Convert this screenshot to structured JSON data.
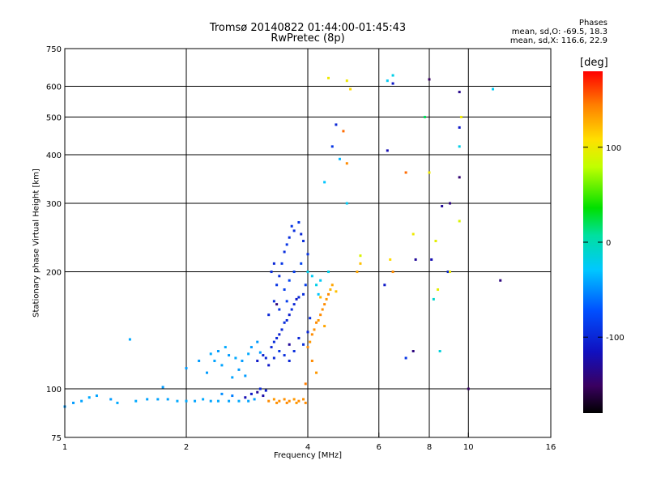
{
  "chart_data": {
    "type": "scatter",
    "title": "Tromsø 20140822 01:44:00-01:45:43",
    "subtitle": "RwPretec (8p)",
    "xlabel": "Frequency [MHz]",
    "ylabel": "Stationary phase Virtual Height [km]",
    "x_scale": "log",
    "y_scale": "log",
    "xlim": [
      1,
      16
    ],
    "ylim": [
      75,
      750
    ],
    "x_ticks": [
      1,
      2,
      4,
      6,
      8,
      10,
      16
    ],
    "y_ticks": [
      75,
      100,
      200,
      300,
      400,
      500,
      600,
      750
    ],
    "x_grid": [
      2,
      4,
      6,
      8,
      10
    ],
    "y_grid": [
      100,
      200,
      300,
      400,
      500,
      600
    ],
    "grid": true,
    "phase_stats": {
      "heading": "Phases",
      "o_line": "mean, sd,O: -69.5, 18.3",
      "x_line": "mean, sd,X: 116.6, 22.9"
    },
    "colorbar": {
      "label": "[deg]",
      "min": -180,
      "max": 180,
      "ticks": [
        100,
        0,
        -100
      ]
    },
    "series": [
      {
        "points": [
          [
            1.0,
            90,
            -45
          ],
          [
            1.05,
            92,
            -45
          ],
          [
            1.1,
            93,
            -42
          ],
          [
            1.15,
            95,
            -40
          ],
          [
            1.2,
            96,
            -42
          ],
          [
            1.3,
            94,
            -45
          ],
          [
            1.35,
            92,
            -40
          ],
          [
            1.45,
            134,
            -40
          ],
          [
            1.5,
            93,
            -40
          ],
          [
            1.6,
            94,
            -42
          ],
          [
            1.7,
            94,
            -42
          ],
          [
            1.8,
            94,
            -42
          ],
          [
            1.9,
            93,
            -40
          ],
          [
            2.0,
            93,
            -40
          ],
          [
            2.1,
            93,
            -42
          ],
          [
            2.2,
            94,
            -40
          ],
          [
            2.3,
            93,
            -42
          ],
          [
            2.4,
            93,
            -40
          ],
          [
            2.55,
            93,
            -42
          ],
          [
            2.7,
            93,
            -40
          ],
          [
            2.85,
            93,
            -42
          ],
          [
            2.95,
            94,
            -45
          ],
          [
            1.75,
            101,
            -45
          ],
          [
            2.45,
            97,
            -50
          ],
          [
            2.6,
            96,
            -55
          ],
          [
            2.0,
            113,
            -45
          ],
          [
            2.15,
            118,
            -45
          ],
          [
            2.25,
            110,
            -45
          ],
          [
            2.3,
            123,
            -40
          ],
          [
            2.4,
            125,
            -45
          ],
          [
            2.45,
            115,
            -42
          ],
          [
            2.55,
            122,
            -45
          ],
          [
            2.6,
            107,
            -42
          ],
          [
            2.7,
            112,
            -45
          ],
          [
            2.75,
            118,
            -45
          ],
          [
            2.85,
            123,
            -40
          ],
          [
            2.9,
            128,
            -45
          ],
          [
            3.0,
            132,
            -45
          ],
          [
            3.05,
            124,
            -45
          ],
          [
            2.5,
            128,
            -40
          ],
          [
            2.35,
            118,
            -42
          ],
          [
            2.65,
            120,
            -40
          ],
          [
            2.8,
            108,
            -45
          ]
        ]
      },
      {
        "points": [
          [
            2.8,
            95,
            -120
          ],
          [
            2.9,
            97,
            -110
          ],
          [
            3.0,
            98,
            -130
          ],
          [
            3.05,
            100,
            -100
          ],
          [
            3.1,
            96,
            -125
          ],
          [
            3.15,
            99,
            -105
          ],
          [
            3.0,
            118,
            -110
          ],
          [
            3.1,
            122,
            -105
          ],
          [
            3.15,
            120,
            -100
          ],
          [
            3.2,
            115,
            -110
          ],
          [
            3.25,
            128,
            -100
          ],
          [
            3.3,
            132,
            -95
          ],
          [
            3.35,
            135,
            -100
          ],
          [
            3.4,
            138,
            -105
          ],
          [
            3.45,
            142,
            -100
          ],
          [
            3.5,
            148,
            -95
          ],
          [
            3.55,
            150,
            -100
          ],
          [
            3.6,
            155,
            -105
          ],
          [
            3.65,
            160,
            -95
          ],
          [
            3.7,
            165,
            -100
          ],
          [
            3.75,
            170,
            -110
          ],
          [
            3.8,
            172,
            -100
          ],
          [
            3.9,
            175,
            -95
          ],
          [
            3.2,
            155,
            -100
          ],
          [
            3.3,
            168,
            -95
          ],
          [
            3.35,
            185,
            -90
          ],
          [
            3.4,
            195,
            -95
          ],
          [
            3.45,
            210,
            -90
          ],
          [
            3.5,
            225,
            -95
          ],
          [
            3.55,
            235,
            -90
          ],
          [
            3.6,
            245,
            -95
          ],
          [
            3.65,
            262,
            -90
          ],
          [
            3.7,
            255,
            -95
          ],
          [
            3.8,
            268,
            -90
          ],
          [
            3.85,
            250,
            -100
          ],
          [
            3.9,
            240,
            -95
          ],
          [
            4.0,
            222,
            -90
          ],
          [
            3.3,
            120,
            -100
          ],
          [
            3.4,
            125,
            -90
          ],
          [
            3.5,
            122,
            -95
          ],
          [
            3.6,
            118,
            -100
          ],
          [
            3.7,
            125,
            -95
          ],
          [
            3.8,
            135,
            -100
          ],
          [
            3.9,
            130,
            -95
          ],
          [
            4.0,
            140,
            -100
          ],
          [
            4.05,
            152,
            -95
          ],
          [
            3.5,
            180,
            -85
          ],
          [
            3.6,
            190,
            -80
          ],
          [
            3.7,
            200,
            -85
          ],
          [
            3.85,
            210,
            -80
          ],
          [
            3.95,
            185,
            -85
          ],
          [
            3.4,
            160,
            -90
          ],
          [
            3.55,
            168,
            -85
          ],
          [
            3.25,
            200,
            -95
          ],
          [
            3.3,
            210,
            -100
          ]
        ]
      },
      {
        "points": [
          [
            3.2,
            93,
            140
          ],
          [
            3.3,
            94,
            135
          ],
          [
            3.4,
            93,
            140
          ],
          [
            3.5,
            94,
            138
          ],
          [
            3.6,
            93,
            140
          ],
          [
            3.7,
            94,
            135
          ],
          [
            3.8,
            93,
            140
          ],
          [
            3.9,
            94,
            138
          ],
          [
            3.95,
            92,
            140
          ],
          [
            3.35,
            92,
            138
          ],
          [
            3.55,
            92,
            140
          ],
          [
            3.75,
            92,
            135
          ],
          [
            4.0,
            128,
            140
          ],
          [
            4.05,
            132,
            135
          ],
          [
            4.1,
            138,
            140
          ],
          [
            4.15,
            142,
            138
          ],
          [
            4.2,
            148,
            140
          ],
          [
            4.25,
            150,
            135
          ],
          [
            4.3,
            155,
            140
          ],
          [
            4.35,
            160,
            138
          ],
          [
            4.4,
            165,
            140
          ],
          [
            4.45,
            170,
            135
          ],
          [
            4.5,
            175,
            140
          ],
          [
            4.55,
            180,
            125
          ],
          [
            4.6,
            185,
            130
          ],
          [
            4.7,
            178,
            120
          ],
          [
            4.3,
            172,
            125
          ],
          [
            4.4,
            145,
            130
          ],
          [
            4.1,
            118,
            140
          ],
          [
            4.2,
            110,
            135
          ],
          [
            5.0,
            380,
            140
          ],
          [
            5.3,
            200,
            130
          ],
          [
            5.4,
            210,
            120
          ],
          [
            6.5,
            200,
            140
          ],
          [
            7.0,
            360,
            150
          ],
          [
            3.95,
            103,
            145
          ],
          [
            4.9,
            460,
            150
          ]
        ]
      },
      {
        "points": [
          [
            4.0,
            200,
            -20
          ],
          [
            4.1,
            195,
            -25
          ],
          [
            4.2,
            185,
            -20
          ],
          [
            4.25,
            175,
            -30
          ],
          [
            4.3,
            190,
            -25
          ],
          [
            4.5,
            200,
            -20
          ],
          [
            4.4,
            340,
            -30
          ],
          [
            5.0,
            300,
            -25
          ],
          [
            6.5,
            640,
            -20
          ],
          [
            6.3,
            620,
            -25
          ],
          [
            9.5,
            420,
            -20
          ],
          [
            11.5,
            590,
            -25
          ],
          [
            4.8,
            390,
            -35
          ],
          [
            8.2,
            170,
            -10
          ],
          [
            8.5,
            125,
            -15
          ]
        ]
      },
      {
        "points": [
          [
            4.6,
            420,
            -90
          ],
          [
            4.7,
            478,
            -100
          ],
          [
            6.3,
            410,
            -120
          ],
          [
            6.5,
            610,
            -110
          ],
          [
            7.4,
            215,
            -130
          ],
          [
            7.3,
            125,
            -140
          ],
          [
            8.0,
            625,
            -150
          ],
          [
            8.6,
            295,
            -130
          ],
          [
            9.0,
            300,
            -140
          ],
          [
            9.5,
            580,
            -135
          ],
          [
            9.5,
            350,
            -145
          ],
          [
            9.5,
            470,
            -110
          ],
          [
            8.9,
            200,
            -100
          ],
          [
            6.2,
            185,
            -110
          ],
          [
            7.0,
            120,
            -90
          ],
          [
            10.0,
            100,
            -150
          ],
          [
            12.0,
            190,
            -140
          ],
          [
            8.1,
            215,
            -120
          ],
          [
            3.35,
            165,
            -140
          ],
          [
            3.6,
            130,
            -130
          ]
        ]
      },
      {
        "points": [
          [
            5.0,
            620,
            100
          ],
          [
            5.1,
            590,
            110
          ],
          [
            4.5,
            630,
            100
          ],
          [
            5.4,
            220,
            90
          ],
          [
            7.3,
            250,
            100
          ],
          [
            8.0,
            360,
            100
          ],
          [
            8.3,
            240,
            95
          ],
          [
            9.0,
            200,
            100
          ],
          [
            9.5,
            270,
            90
          ],
          [
            9.6,
            500,
            100
          ],
          [
            7.8,
            500,
            20
          ],
          [
            8.4,
            180,
            95
          ],
          [
            6.4,
            215,
            110
          ]
        ]
      }
    ]
  }
}
